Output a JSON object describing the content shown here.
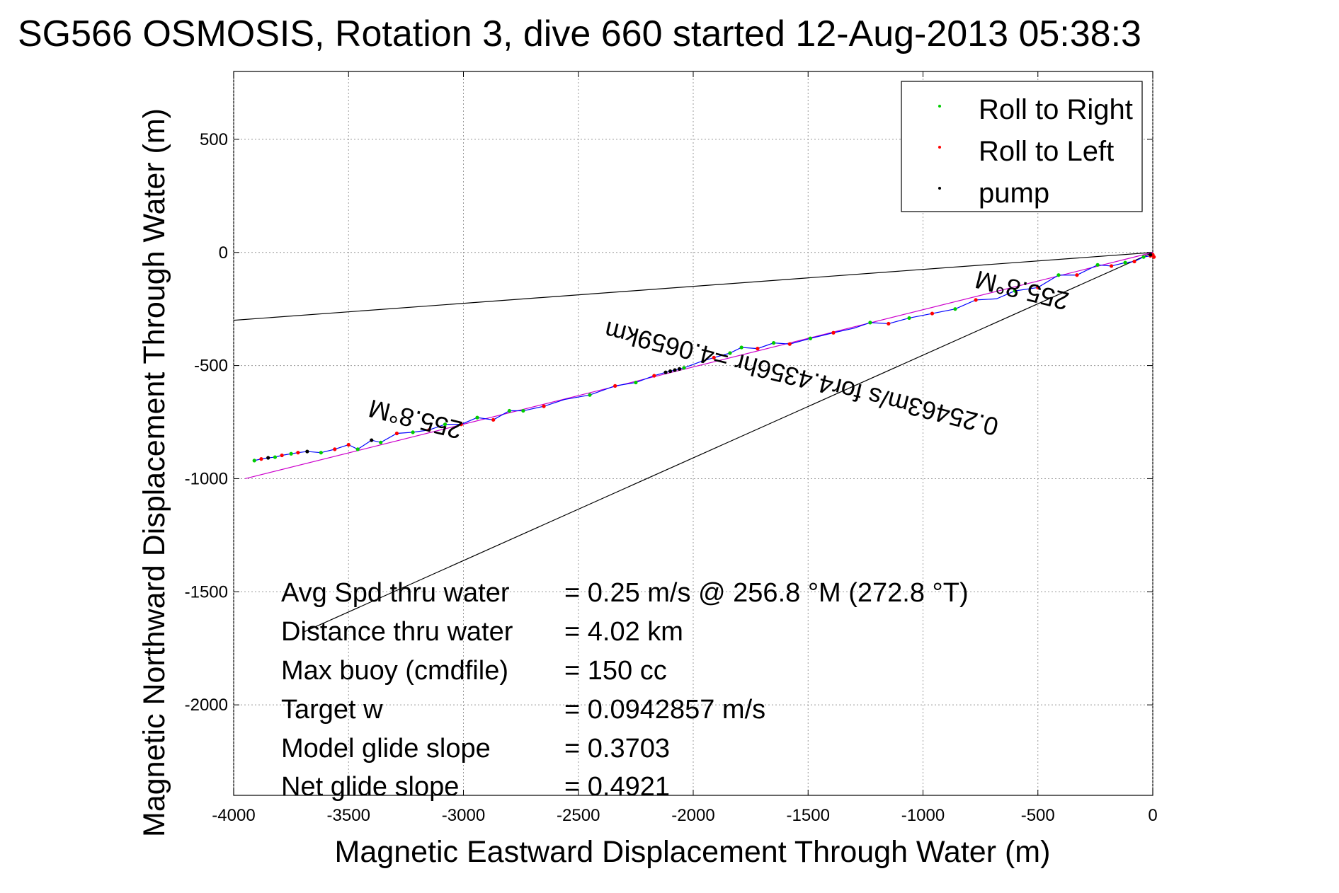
{
  "chart_data": {
    "type": "scatter",
    "title": "SG566 OSMOSIS, Rotation 3, dive 660 started 12-Aug-2013 05:38:3",
    "xlabel": "Magnetic Eastward Displacement Through Water (m)",
    "ylabel": "Magnetic Northward Displacement Through Water (m)",
    "xlim": [
      -4000,
      0
    ],
    "ylim": [
      -2400,
      800
    ],
    "x_ticks": [
      -4000,
      -3500,
      -3000,
      -2500,
      -2000,
      -1500,
      -1000,
      -500,
      0
    ],
    "y_ticks": [
      500,
      0,
      -500,
      -1000,
      -1500,
      -2000
    ],
    "grid": true,
    "legend_position": "top-right",
    "legend": [
      {
        "label": "Roll to Right",
        "color": "#00cc00"
      },
      {
        "label": "Roll to Left",
        "color": "#ff0000"
      },
      {
        "label": "pump",
        "color": "#000000"
      }
    ],
    "track": {
      "color": "#0000ff",
      "points": [
        [
          -3910,
          -920
        ],
        [
          -3880,
          -913
        ],
        [
          -3850,
          -908
        ],
        [
          -3820,
          -905
        ],
        [
          -3790,
          -897
        ],
        [
          -3750,
          -890
        ],
        [
          -3720,
          -885
        ],
        [
          -3680,
          -880
        ],
        [
          -3620,
          -885
        ],
        [
          -3560,
          -870
        ],
        [
          -3500,
          -850
        ],
        [
          -3460,
          -870
        ],
        [
          -3400,
          -830
        ],
        [
          -3360,
          -840
        ],
        [
          -3290,
          -800
        ],
        [
          -3220,
          -795
        ],
        [
          -3150,
          -785
        ],
        [
          -3080,
          -760
        ],
        [
          -3010,
          -760
        ],
        [
          -2940,
          -730
        ],
        [
          -2870,
          -740
        ],
        [
          -2800,
          -700
        ],
        [
          -2740,
          -700
        ],
        [
          -2650,
          -680
        ],
        [
          -2560,
          -650
        ],
        [
          -2450,
          -630
        ],
        [
          -2340,
          -590
        ],
        [
          -2250,
          -575
        ],
        [
          -2170,
          -545
        ],
        [
          -2120,
          -530
        ],
        [
          -2040,
          -510
        ],
        [
          -1960,
          -480
        ],
        [
          -1910,
          -465
        ],
        [
          -1840,
          -445
        ],
        [
          -1790,
          -420
        ],
        [
          -1720,
          -425
        ],
        [
          -1650,
          -400
        ],
        [
          -1580,
          -405
        ],
        [
          -1490,
          -380
        ],
        [
          -1390,
          -355
        ],
        [
          -1300,
          -335
        ],
        [
          -1230,
          -310
        ],
        [
          -1150,
          -315
        ],
        [
          -1060,
          -290
        ],
        [
          -960,
          -270
        ],
        [
          -860,
          -250
        ],
        [
          -770,
          -210
        ],
        [
          -680,
          -205
        ],
        [
          -600,
          -170
        ],
        [
          -500,
          -155
        ],
        [
          -410,
          -100
        ],
        [
          -330,
          -100
        ],
        [
          -240,
          -55
        ],
        [
          -180,
          -60
        ],
        [
          -120,
          -45
        ],
        [
          -80,
          -40
        ],
        [
          -40,
          -20
        ],
        [
          -10,
          -15
        ],
        [
          0,
          -10
        ]
      ]
    },
    "roll_right_points": [
      [
        -3910,
        -920
      ],
      [
        -3820,
        -905
      ],
      [
        -3750,
        -890
      ],
      [
        -3620,
        -885
      ],
      [
        -3460,
        -870
      ],
      [
        -3360,
        -840
      ],
      [
        -3220,
        -795
      ],
      [
        -3080,
        -760
      ],
      [
        -2940,
        -730
      ],
      [
        -2800,
        -700
      ],
      [
        -2740,
        -700
      ],
      [
        -2450,
        -630
      ],
      [
        -2250,
        -575
      ],
      [
        -2040,
        -510
      ],
      [
        -1840,
        -445
      ],
      [
        -1790,
        -420
      ],
      [
        -1650,
        -400
      ],
      [
        -1490,
        -380
      ],
      [
        -1230,
        -310
      ],
      [
        -1060,
        -290
      ],
      [
        -860,
        -250
      ],
      [
        -600,
        -170
      ],
      [
        -410,
        -100
      ],
      [
        -240,
        -55
      ],
      [
        -120,
        -45
      ],
      [
        -40,
        -20
      ]
    ],
    "roll_left_points": [
      [
        -3880,
        -913
      ],
      [
        -3790,
        -897
      ],
      [
        -3720,
        -885
      ],
      [
        -3560,
        -870
      ],
      [
        -3500,
        -850
      ],
      [
        -3290,
        -800
      ],
      [
        -3150,
        -785
      ],
      [
        -3010,
        -760
      ],
      [
        -2870,
        -740
      ],
      [
        -2650,
        -680
      ],
      [
        -2340,
        -590
      ],
      [
        -2170,
        -545
      ],
      [
        -1910,
        -465
      ],
      [
        -1720,
        -425
      ],
      [
        -1580,
        -405
      ],
      [
        -1390,
        -355
      ],
      [
        -1150,
        -315
      ],
      [
        -960,
        -270
      ],
      [
        -770,
        -210
      ],
      [
        -500,
        -155
      ],
      [
        -330,
        -100
      ],
      [
        -180,
        -60
      ],
      [
        -80,
        -40
      ],
      [
        -10,
        -15
      ],
      [
        0,
        -10
      ],
      [
        5,
        -20
      ]
    ],
    "pump_points": [
      [
        -3850,
        -908
      ],
      [
        -3680,
        -880
      ],
      [
        -3400,
        -830
      ],
      [
        -2120,
        -530
      ],
      [
        -2100,
        -525
      ],
      [
        -2080,
        -520
      ],
      [
        -2060,
        -515
      ],
      [
        -10,
        -10
      ]
    ],
    "reference_lines": [
      {
        "color": "#000000",
        "from": [
          0,
          0
        ],
        "to": [
          -4000,
          -300
        ]
      },
      {
        "color": "#000000",
        "from": [
          0,
          0
        ],
        "to": [
          -3700,
          -1680
        ]
      },
      {
        "color": "#cc00cc",
        "from": [
          0,
          0
        ],
        "to": [
          -3950,
          -1000
        ]
      }
    ],
    "heading_labels": [
      {
        "text": "255.8°M",
        "x": -3200,
        "y": -700,
        "angle": 194
      },
      {
        "text": "255.8°M",
        "x": -560,
        "y": -130,
        "angle": 194
      },
      {
        "text": "0.25463m/s for4.4356hr =4.0659km",
        "x": -1520,
        "y": -520,
        "angle": 194
      }
    ],
    "stats": [
      {
        "label": "Avg Spd thru water",
        "value": "=  0.25 m/s @ 256.8 °M (272.8 °T)"
      },
      {
        "label": "Distance thru water",
        "value": "=  4.02 km"
      },
      {
        "label": "Max buoy (cmdfile)",
        "value": "= 150 cc"
      },
      {
        "label": "Target w",
        "value": "= 0.0942857 m/s"
      },
      {
        "label": "Model glide slope",
        "value": "= 0.3703"
      },
      {
        "label": "Net glide slope",
        "value": "= 0.4921"
      }
    ]
  }
}
